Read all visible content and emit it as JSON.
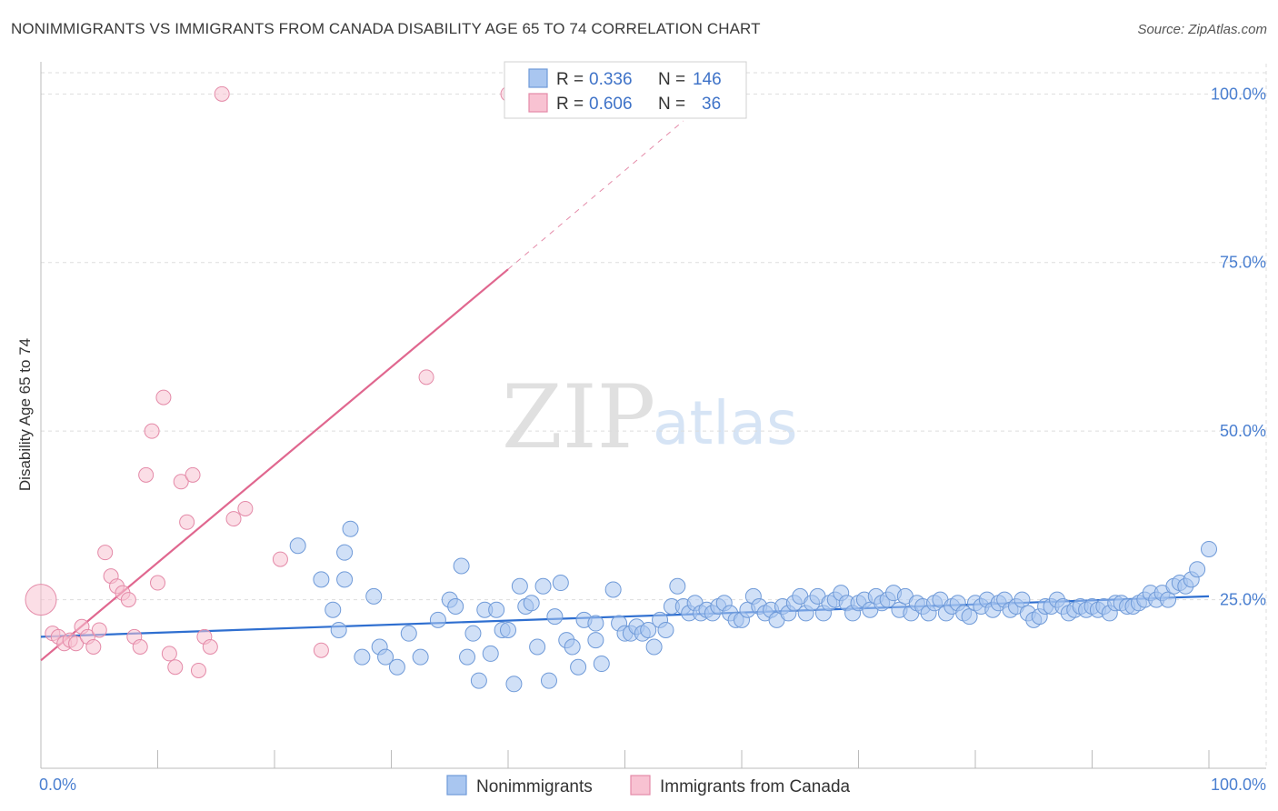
{
  "title": "NONIMMIGRANTS VS IMMIGRANTS FROM CANADA DISABILITY AGE 65 TO 74 CORRELATION CHART",
  "source": "Source: ZipAtlas.com",
  "watermark": {
    "zip": "ZIP",
    "atlas": "atlas"
  },
  "legend_top": {
    "r_label": "R = ",
    "n_label": "N = ",
    "rows": [
      {
        "r": "0.336",
        "n": "146",
        "color": "#a9c6f0",
        "stroke": "#6f9ad8"
      },
      {
        "r": "0.606",
        "n": "36",
        "color": "#f8c2d2",
        "stroke": "#e48aa8"
      }
    ]
  },
  "colors": {
    "blue_fill": "#a9c6f0",
    "blue_stroke": "#6f9ad8",
    "blue_line": "#2f6fd0",
    "pink_fill": "#f8c2d2",
    "pink_stroke": "#e48aa8",
    "pink_line": "#e0678f",
    "axis_label": "#4a7fd0",
    "grid": "#dddddd"
  },
  "chart_data": {
    "type": "scatter",
    "title": "NONIMMIGRANTS VS IMMIGRANTS FROM CANADA DISABILITY AGE 65 TO 74 CORRELATION CHART",
    "xlabel": "",
    "ylabel": "Disability Age 65 to 74",
    "xlim": [
      0,
      100
    ],
    "ylim": [
      0,
      105
    ],
    "x_tick_labels": [
      "0.0%",
      "100.0%"
    ],
    "y_ticks": [
      25,
      50,
      75,
      100
    ],
    "y_tick_labels": [
      "25.0%",
      "50.0%",
      "75.0%",
      "100.0%"
    ],
    "grid": true,
    "legend_position": "bottom",
    "series": [
      {
        "name": "Nonimmigrants",
        "r": 0.336,
        "n": 146,
        "trend": {
          "x0": 0,
          "y0": 19.5,
          "x1": 100,
          "y1": 25.5
        },
        "points": [
          [
            22,
            33
          ],
          [
            26.5,
            35.5
          ],
          [
            24,
            28
          ],
          [
            26,
            28
          ],
          [
            26,
            32
          ],
          [
            25,
            23.5
          ],
          [
            25.5,
            20.5
          ],
          [
            27.5,
            16.5
          ],
          [
            28.5,
            25.5
          ],
          [
            29,
            18
          ],
          [
            29.5,
            16.5
          ],
          [
            30.5,
            15
          ],
          [
            31.5,
            20
          ],
          [
            32.5,
            16.5
          ],
          [
            34,
            22
          ],
          [
            35,
            25
          ],
          [
            35.5,
            24
          ],
          [
            36,
            30
          ],
          [
            36.5,
            16.5
          ],
          [
            37,
            20
          ],
          [
            37.5,
            13
          ],
          [
            38,
            23.5
          ],
          [
            38.5,
            17
          ],
          [
            39,
            23.5
          ],
          [
            39.5,
            20.5
          ],
          [
            40,
            20.5
          ],
          [
            40.5,
            12.5
          ],
          [
            41,
            27
          ],
          [
            41.5,
            24
          ],
          [
            42,
            24.5
          ],
          [
            42.5,
            18
          ],
          [
            43,
            27
          ],
          [
            43.5,
            13
          ],
          [
            44,
            22.5
          ],
          [
            44.5,
            27.5
          ],
          [
            45,
            19
          ],
          [
            45.5,
            18
          ],
          [
            46,
            15
          ],
          [
            46.5,
            22
          ],
          [
            47.5,
            21.5
          ],
          [
            47.5,
            19
          ],
          [
            48,
            15.5
          ],
          [
            49,
            26.5
          ],
          [
            49.5,
            21.5
          ],
          [
            50,
            20
          ],
          [
            50.5,
            20
          ],
          [
            51,
            21
          ],
          [
            51.5,
            20
          ],
          [
            52,
            20.5
          ],
          [
            52.5,
            18
          ],
          [
            53,
            22
          ],
          [
            53.5,
            20.5
          ],
          [
            54,
            24
          ],
          [
            54.5,
            27
          ],
          [
            55,
            24
          ],
          [
            55.5,
            23
          ],
          [
            56,
            24.5
          ],
          [
            56.5,
            23
          ],
          [
            57,
            23.5
          ],
          [
            57.5,
            23
          ],
          [
            58,
            24
          ],
          [
            58.5,
            24.5
          ],
          [
            59,
            23
          ],
          [
            59.5,
            22
          ],
          [
            60,
            22
          ],
          [
            60.5,
            23.5
          ],
          [
            61,
            25.5
          ],
          [
            61.5,
            24
          ],
          [
            62,
            23
          ],
          [
            62.5,
            23.5
          ],
          [
            63,
            22
          ],
          [
            63.5,
            24
          ],
          [
            64,
            23
          ],
          [
            64.5,
            24.5
          ],
          [
            65,
            25.5
          ],
          [
            65.5,
            23
          ],
          [
            66,
            24.5
          ],
          [
            66.5,
            25.5
          ],
          [
            67,
            23
          ],
          [
            67.5,
            24.5
          ],
          [
            68,
            25
          ],
          [
            68.5,
            26
          ],
          [
            69,
            24.5
          ],
          [
            69.5,
            23
          ],
          [
            70,
            24.5
          ],
          [
            70.5,
            25
          ],
          [
            71,
            23.5
          ],
          [
            71.5,
            25.5
          ],
          [
            72,
            24.5
          ],
          [
            72.5,
            25
          ],
          [
            73,
            26
          ],
          [
            73.5,
            23.5
          ],
          [
            74,
            25.5
          ],
          [
            74.5,
            23
          ],
          [
            75,
            24.5
          ],
          [
            75.5,
            24
          ],
          [
            76,
            23
          ],
          [
            76.5,
            24.5
          ],
          [
            77,
            25
          ],
          [
            77.5,
            23
          ],
          [
            78,
            24
          ],
          [
            78.5,
            24.5
          ],
          [
            79,
            23
          ],
          [
            79.5,
            22.5
          ],
          [
            80,
            24.5
          ],
          [
            80.5,
            24
          ],
          [
            81,
            25
          ],
          [
            81.5,
            23.5
          ],
          [
            82,
            24.5
          ],
          [
            82.5,
            25
          ],
          [
            83,
            23.5
          ],
          [
            83.5,
            24
          ],
          [
            84,
            25
          ],
          [
            84.5,
            23
          ],
          [
            85,
            22
          ],
          [
            85.5,
            22.5
          ],
          [
            86,
            24
          ],
          [
            86.5,
            24
          ],
          [
            87,
            25
          ],
          [
            87.5,
            24
          ],
          [
            88,
            23
          ],
          [
            88.5,
            23.5
          ],
          [
            89,
            24
          ],
          [
            89.5,
            23.5
          ],
          [
            90,
            24
          ],
          [
            90.5,
            23.5
          ],
          [
            91,
            24
          ],
          [
            91.5,
            23
          ],
          [
            92,
            24.5
          ],
          [
            92.5,
            24.5
          ],
          [
            93,
            24
          ],
          [
            93.5,
            24
          ],
          [
            94,
            24.5
          ],
          [
            94.5,
            25
          ],
          [
            95,
            26
          ],
          [
            95.5,
            25
          ],
          [
            96,
            26
          ],
          [
            96.5,
            25
          ],
          [
            97,
            27
          ],
          [
            97.5,
            27.5
          ],
          [
            98,
            27
          ],
          [
            98.5,
            28
          ],
          [
            99,
            29.5
          ],
          [
            100,
            32.5
          ]
        ]
      },
      {
        "name": "Immigrants from Canada",
        "r": 0.606,
        "n": 36,
        "trend": {
          "x0": 0,
          "y0": 16,
          "x1": 40,
          "y1": 74
        },
        "trend_dashed": {
          "x0": 40,
          "y0": 74,
          "x1": 55,
          "y1": 96
        },
        "points": [
          [
            0,
            25
          ],
          [
            1,
            20
          ],
          [
            1.5,
            19.5
          ],
          [
            2,
            18.5
          ],
          [
            2.5,
            19
          ],
          [
            3,
            18.5
          ],
          [
            3.5,
            21
          ],
          [
            4,
            19.5
          ],
          [
            4.5,
            18
          ],
          [
            5,
            20.5
          ],
          [
            5.5,
            32
          ],
          [
            6,
            28.5
          ],
          [
            6.5,
            27
          ],
          [
            7,
            26
          ],
          [
            7.5,
            25
          ],
          [
            8,
            19.5
          ],
          [
            8.5,
            18
          ],
          [
            9,
            43.5
          ],
          [
            9.5,
            50
          ],
          [
            10,
            27.5
          ],
          [
            10.5,
            55
          ],
          [
            11,
            17
          ],
          [
            11.5,
            15
          ],
          [
            12,
            42.5
          ],
          [
            12.5,
            36.5
          ],
          [
            13,
            43.5
          ],
          [
            13.5,
            14.5
          ],
          [
            14,
            19.5
          ],
          [
            14.5,
            18
          ],
          [
            15.5,
            100
          ],
          [
            16.5,
            37
          ],
          [
            17.5,
            38.5
          ],
          [
            20.5,
            31
          ],
          [
            24,
            17.5
          ],
          [
            33,
            58
          ],
          [
            40,
            100
          ]
        ]
      }
    ]
  },
  "bottom_legend": [
    {
      "label": "Nonimmigrants"
    },
    {
      "label": "Immigrants from Canada"
    }
  ]
}
